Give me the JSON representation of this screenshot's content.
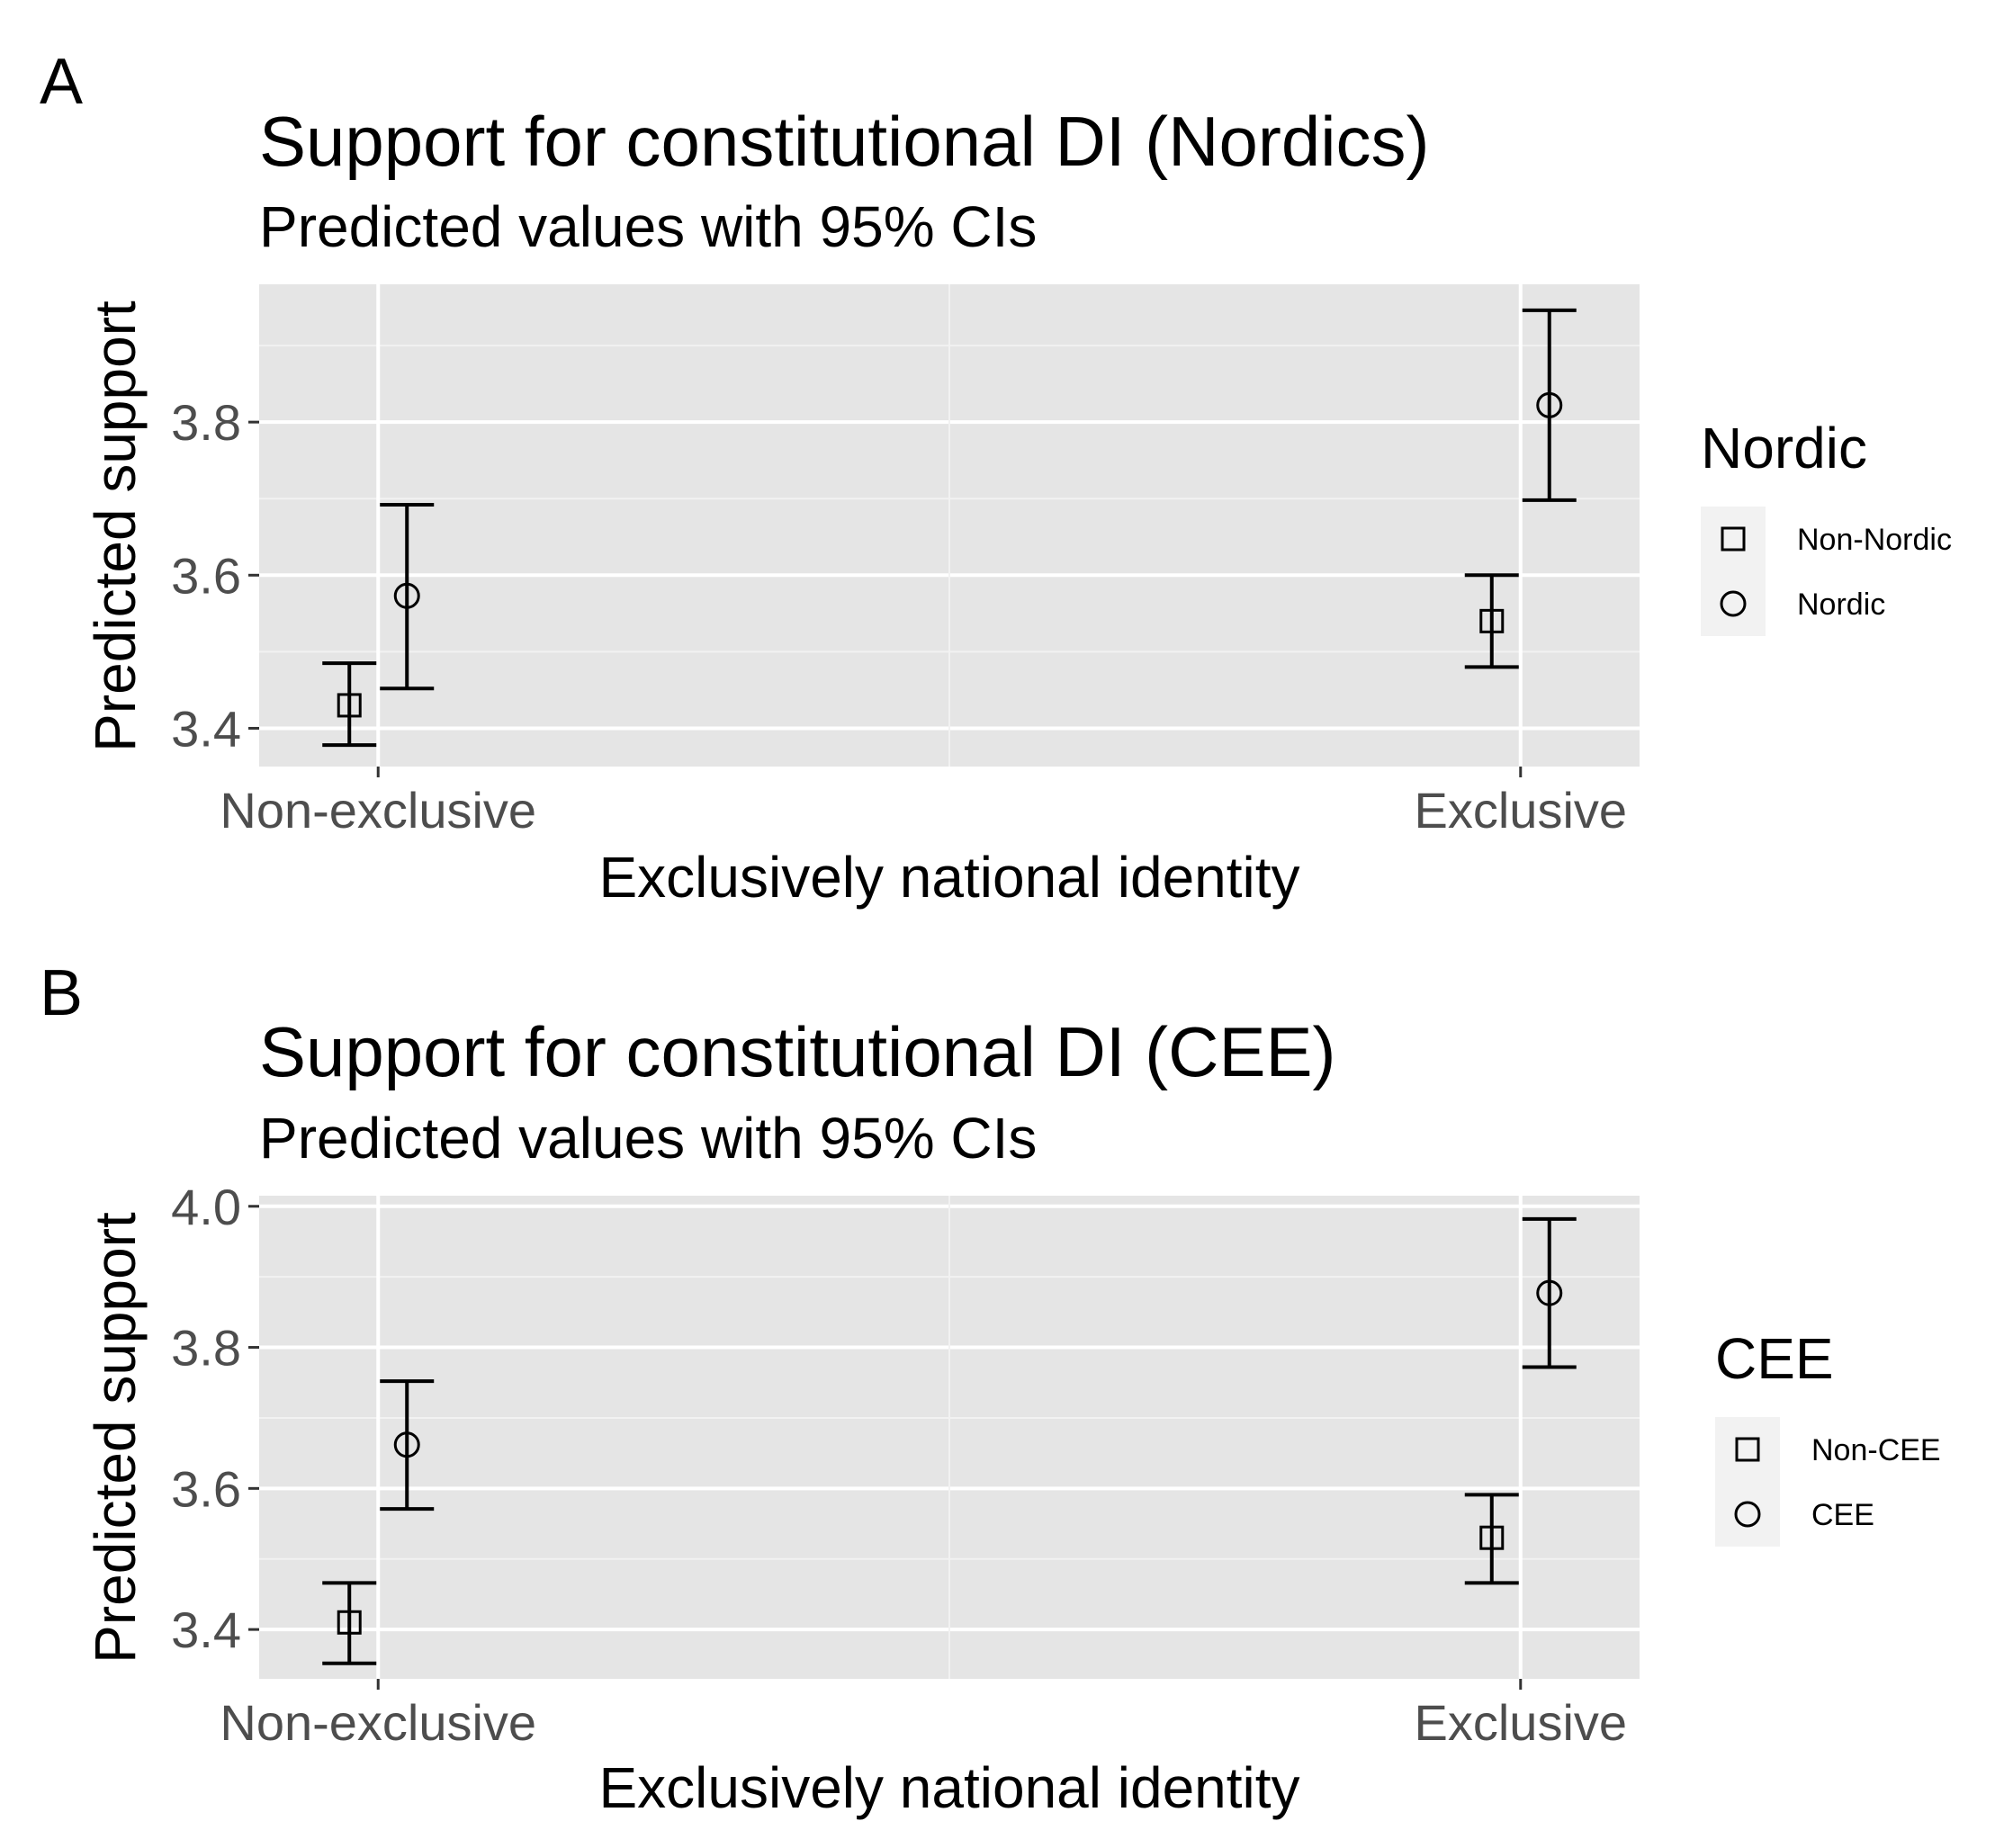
{
  "chart_data": [
    {
      "panel": "A",
      "type": "scatter",
      "title": "Support for constitutional DI (Nordics)",
      "subtitle": "Predicted values with 95% CIs",
      "xlabel": "Exclusively national identity",
      "ylabel": "Predicted support",
      "categories": [
        "Non-exclusive",
        "Exclusive"
      ],
      "ylim": [
        3.35,
        3.98
      ],
      "yticks": [
        3.4,
        3.6,
        3.8
      ],
      "ytick_labels": [
        "3.4",
        "3.6",
        "3.8"
      ],
      "grid": true,
      "legend": {
        "title": "Nordic",
        "position": "right"
      },
      "series": [
        {
          "name": "Non-Nordic",
          "shape": "square",
          "values": [
            3.43,
            3.54
          ],
          "lower": [
            3.378,
            3.48
          ],
          "upper": [
            3.485,
            3.6
          ]
        },
        {
          "name": "Nordic",
          "shape": "circle",
          "values": [
            3.573,
            3.822
          ],
          "lower": [
            3.452,
            3.698
          ],
          "upper": [
            3.692,
            3.946
          ]
        }
      ]
    },
    {
      "panel": "B",
      "type": "scatter",
      "title": "Support for constitutional DI (CEE)",
      "subtitle": "Predicted values with 95% CIs",
      "xlabel": "Exclusively national identity",
      "ylabel": "Predicted support",
      "categories": [
        "Non-exclusive",
        "Exclusive"
      ],
      "ylim": [
        3.33,
        4.015
      ],
      "yticks": [
        3.4,
        3.6,
        3.8,
        4.0
      ],
      "ytick_labels": [
        "3.4",
        "3.6",
        "3.8",
        "4.0"
      ],
      "grid": true,
      "legend": {
        "title": "CEE",
        "position": "right"
      },
      "series": [
        {
          "name": "Non-CEE",
          "shape": "square",
          "values": [
            3.41,
            3.53
          ],
          "lower": [
            3.352,
            3.466
          ],
          "upper": [
            3.466,
            3.591
          ]
        },
        {
          "name": "CEE",
          "shape": "circle",
          "values": [
            3.662,
            3.877
          ],
          "lower": [
            3.571,
            3.772
          ],
          "upper": [
            3.752,
            3.982
          ]
        }
      ]
    }
  ]
}
